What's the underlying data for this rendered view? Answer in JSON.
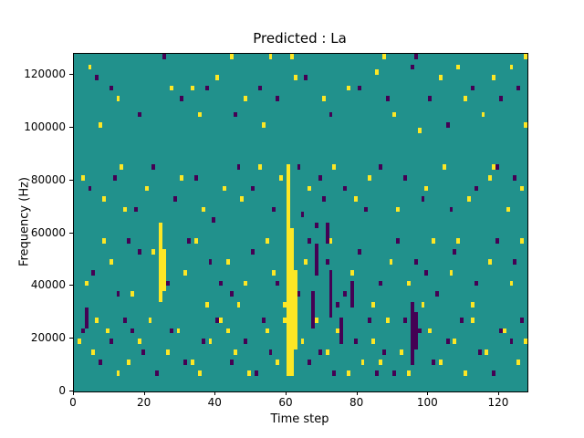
{
  "title": "Predicted : La",
  "chart_data": {
    "type": "heatmap",
    "title": "Predicted : La",
    "xlabel": "Time step",
    "ylabel": "Frequency (Hz)",
    "xlim": [
      0,
      128
    ],
    "ylim": [
      0,
      128000
    ],
    "x_ticks": [
      0,
      20,
      40,
      60,
      80,
      100,
      120
    ],
    "y_ticks": [
      0,
      20000,
      40000,
      60000,
      80000,
      100000,
      120000
    ],
    "grid": false,
    "legend": "none",
    "colors": {
      "background": "#21918c",
      "high": "#fde725",
      "low": "#440154",
      "figure": "#ffffff",
      "axis": "#000000"
    },
    "cell_grid": {
      "x_bins": 128,
      "y_bins": 64,
      "hz_per_bin": 2000
    },
    "streaks": [
      {
        "x": 60,
        "y0": 3,
        "y1": 42,
        "v": "high"
      },
      {
        "x": 61,
        "y0": 3,
        "y1": 30,
        "v": "high"
      },
      {
        "x": 62,
        "y0": 8,
        "y1": 22,
        "v": "high"
      },
      {
        "x": 24,
        "y0": 17,
        "y1": 31,
        "v": "high"
      },
      {
        "x": 25,
        "y0": 19,
        "y1": 26,
        "v": "high"
      },
      {
        "x": 95,
        "y0": 5,
        "y1": 16,
        "v": "low"
      },
      {
        "x": 96,
        "y0": 8,
        "y1": 14,
        "v": "low"
      },
      {
        "x": 67,
        "y0": 12,
        "y1": 18,
        "v": "low"
      },
      {
        "x": 72,
        "y0": 14,
        "y1": 22,
        "v": "low"
      },
      {
        "x": 75,
        "y0": 9,
        "y1": 13,
        "v": "low"
      },
      {
        "x": 78,
        "y0": 16,
        "y1": 20,
        "v": "low"
      },
      {
        "x": 3,
        "y0": 12,
        "y1": 15,
        "v": "low"
      },
      {
        "x": 68,
        "y0": 22,
        "y1": 27,
        "v": "low"
      },
      {
        "x": 71,
        "y0": 28,
        "y1": 31,
        "v": "low"
      }
    ],
    "cells": {
      "high": [
        [
          4,
          61
        ],
        [
          12,
          55
        ],
        [
          27,
          57
        ],
        [
          33,
          57
        ],
        [
          35,
          52
        ],
        [
          40,
          59
        ],
        [
          44,
          63
        ],
        [
          48,
          55
        ],
        [
          53,
          50
        ],
        [
          55,
          63
        ],
        [
          61,
          63
        ],
        [
          62,
          59
        ],
        [
          70,
          55
        ],
        [
          77,
          57
        ],
        [
          85,
          60
        ],
        [
          87,
          63
        ],
        [
          90,
          52
        ],
        [
          97,
          49
        ],
        [
          103,
          59
        ],
        [
          108,
          61
        ],
        [
          110,
          55
        ],
        [
          115,
          52
        ],
        [
          118,
          59
        ],
        [
          123,
          61
        ],
        [
          127,
          63
        ],
        [
          127,
          50
        ],
        [
          7,
          50
        ],
        [
          2,
          40
        ],
        [
          8,
          36
        ],
        [
          13,
          42
        ],
        [
          14,
          34
        ],
        [
          20,
          38
        ],
        [
          30,
          40
        ],
        [
          36,
          34
        ],
        [
          42,
          38
        ],
        [
          47,
          36
        ],
        [
          52,
          42
        ],
        [
          58,
          40
        ],
        [
          66,
          38
        ],
        [
          73,
          42
        ],
        [
          79,
          36
        ],
        [
          83,
          40
        ],
        [
          91,
          34
        ],
        [
          99,
          38
        ],
        [
          104,
          42
        ],
        [
          111,
          36
        ],
        [
          117,
          40
        ],
        [
          122,
          34
        ],
        [
          126,
          38
        ],
        [
          118,
          42
        ],
        [
          3,
          20
        ],
        [
          8,
          28
        ],
        [
          10,
          24
        ],
        [
          16,
          18
        ],
        [
          22,
          26
        ],
        [
          31,
          22
        ],
        [
          34,
          28
        ],
        [
          37,
          16
        ],
        [
          43,
          24
        ],
        [
          46,
          16
        ],
        [
          48,
          20
        ],
        [
          54,
          28
        ],
        [
          56,
          22
        ],
        [
          59,
          16
        ],
        [
          65,
          24
        ],
        [
          72,
          28
        ],
        [
          78,
          22
        ],
        [
          84,
          16
        ],
        [
          89,
          24
        ],
        [
          94,
          20
        ],
        [
          98,
          16
        ],
        [
          101,
          28
        ],
        [
          106,
          22
        ],
        [
          108,
          28
        ],
        [
          112,
          16
        ],
        [
          117,
          24
        ],
        [
          123,
          20
        ],
        [
          126,
          28
        ],
        [
          1,
          9
        ],
        [
          5,
          7
        ],
        [
          6,
          13
        ],
        [
          9,
          11
        ],
        [
          12,
          3
        ],
        [
          15,
          5
        ],
        [
          18,
          9
        ],
        [
          21,
          13
        ],
        [
          26,
          7
        ],
        [
          29,
          11
        ],
        [
          33,
          5
        ],
        [
          35,
          3
        ],
        [
          38,
          9
        ],
        [
          41,
          13
        ],
        [
          43,
          11
        ],
        [
          45,
          7
        ],
        [
          49,
          3
        ],
        [
          54,
          11
        ],
        [
          57,
          5
        ],
        [
          59,
          13
        ],
        [
          64,
          9
        ],
        [
          68,
          13
        ],
        [
          71,
          7
        ],
        [
          74,
          11
        ],
        [
          77,
          3
        ],
        [
          81,
          5
        ],
        [
          84,
          9
        ],
        [
          86,
          5
        ],
        [
          88,
          13
        ],
        [
          92,
          7
        ],
        [
          94,
          3
        ],
        [
          100,
          11
        ],
        [
          103,
          5
        ],
        [
          107,
          9
        ],
        [
          110,
          3
        ],
        [
          112,
          13
        ],
        [
          116,
          7
        ],
        [
          121,
          11
        ],
        [
          125,
          5
        ],
        [
          127,
          9
        ]
      ],
      "low": [
        [
          6,
          59
        ],
        [
          10,
          57
        ],
        [
          18,
          52
        ],
        [
          25,
          63
        ],
        [
          30,
          55
        ],
        [
          37,
          57
        ],
        [
          45,
          52
        ],
        [
          52,
          57
        ],
        [
          57,
          55
        ],
        [
          65,
          59
        ],
        [
          72,
          52
        ],
        [
          80,
          57
        ],
        [
          88,
          55
        ],
        [
          95,
          61
        ],
        [
          96,
          63
        ],
        [
          100,
          55
        ],
        [
          105,
          50
        ],
        [
          112,
          57
        ],
        [
          120,
          55
        ],
        [
          125,
          57
        ],
        [
          4,
          38
        ],
        [
          11,
          40
        ],
        [
          17,
          34
        ],
        [
          22,
          42
        ],
        [
          28,
          36
        ],
        [
          34,
          40
        ],
        [
          39,
          32
        ],
        [
          46,
          42
        ],
        [
          50,
          38
        ],
        [
          56,
          34
        ],
        [
          63,
          42
        ],
        [
          64,
          33
        ],
        [
          68,
          31
        ],
        [
          69,
          40
        ],
        [
          70,
          36
        ],
        [
          76,
          38
        ],
        [
          82,
          34
        ],
        [
          86,
          42
        ],
        [
          93,
          40
        ],
        [
          98,
          36
        ],
        [
          106,
          34
        ],
        [
          113,
          38
        ],
        [
          119,
          42
        ],
        [
          124,
          40
        ],
        [
          5,
          22
        ],
        [
          12,
          18
        ],
        [
          15,
          28
        ],
        [
          18,
          26
        ],
        [
          26,
          20
        ],
        [
          32,
          28
        ],
        [
          38,
          24
        ],
        [
          41,
          20
        ],
        [
          44,
          18
        ],
        [
          50,
          26
        ],
        [
          57,
          20
        ],
        [
          63,
          18
        ],
        [
          66,
          28
        ],
        [
          71,
          24
        ],
        [
          74,
          16
        ],
        [
          76,
          18
        ],
        [
          80,
          26
        ],
        [
          86,
          20
        ],
        [
          91,
          28
        ],
        [
          96,
          24
        ],
        [
          99,
          22
        ],
        [
          102,
          18
        ],
        [
          107,
          26
        ],
        [
          113,
          20
        ],
        [
          119,
          28
        ],
        [
          124,
          24
        ],
        [
          2,
          11
        ],
        [
          7,
          5
        ],
        [
          10,
          9
        ],
        [
          14,
          13
        ],
        [
          16,
          11
        ],
        [
          19,
          7
        ],
        [
          23,
          3
        ],
        [
          27,
          11
        ],
        [
          31,
          5
        ],
        [
          36,
          9
        ],
        [
          40,
          13
        ],
        [
          44,
          5
        ],
        [
          48,
          9
        ],
        [
          51,
          3
        ],
        [
          53,
          13
        ],
        [
          55,
          7
        ],
        [
          66,
          5
        ],
        [
          69,
          7
        ],
        [
          73,
          3
        ],
        [
          79,
          9
        ],
        [
          83,
          13
        ],
        [
          85,
          3
        ],
        [
          87,
          7
        ],
        [
          90,
          3
        ],
        [
          93,
          13
        ],
        [
          97,
          11
        ],
        [
          101,
          5
        ],
        [
          105,
          9
        ],
        [
          109,
          13
        ],
        [
          114,
          7
        ],
        [
          118,
          3
        ],
        [
          120,
          11
        ],
        [
          123,
          9
        ],
        [
          126,
          13
        ]
      ]
    }
  }
}
